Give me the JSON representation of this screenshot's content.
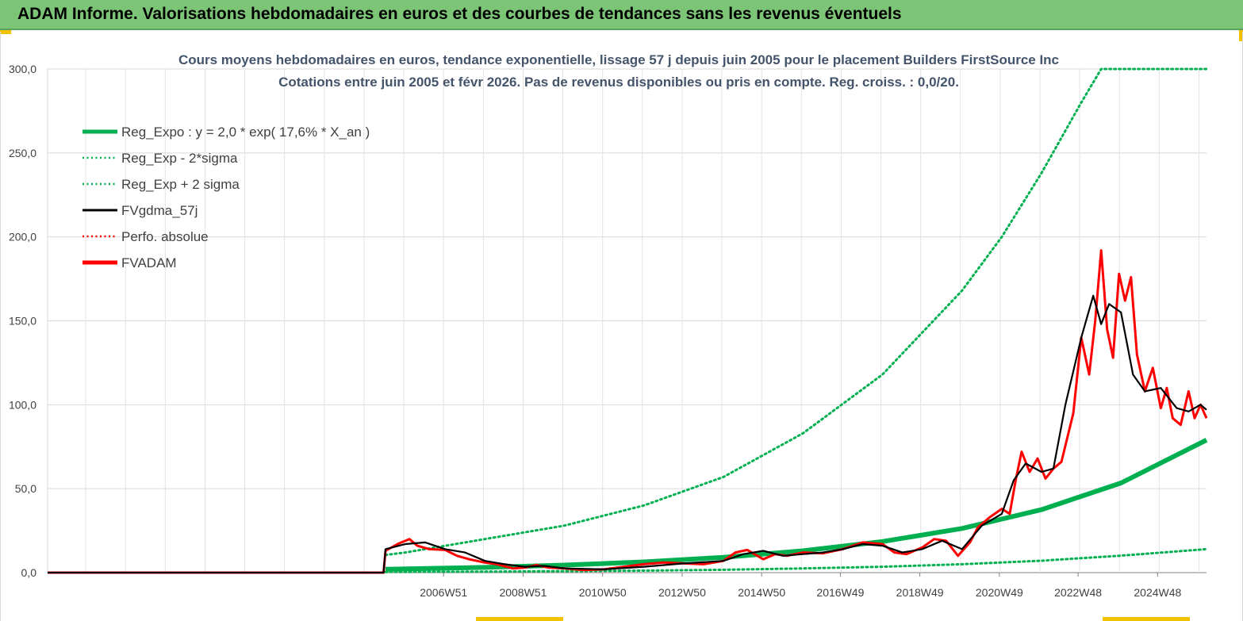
{
  "banner": {
    "title": "ADAM Informe. Valorisations hebdomadaires en euros et des courbes de tendances sans les revenus éventuels"
  },
  "colors": {
    "banner_bg": "#7cc576",
    "green": "#00b050",
    "red": "#ff0000",
    "black": "#000000",
    "grid": "#d9d9d9"
  },
  "chart_data": {
    "type": "line",
    "title": "Cours moyens hebdomadaires en euros, tendance exponentielle, lissage 57 j depuis juin 2005 pour le placement Builders FirstSource Inc",
    "subtitle": "Cotations entre juin 2005 et févr 2026. Pas de revenus disponibles ou pris en compte. Reg. croiss. : 0,0/20.",
    "xlabel": "",
    "ylabel": "",
    "ylim": [
      0,
      300
    ],
    "xlim": [
      1997.0,
      2026.15
    ],
    "y_ticks": [
      0,
      50,
      100,
      150,
      200,
      250,
      300
    ],
    "y_tick_labels": [
      "0,0",
      "50,0",
      "100,0",
      "150,0",
      "200,0",
      "250,0",
      "300,0"
    ],
    "x_ticks": [
      2006.96,
      2008.96,
      2010.96,
      2012.96,
      2014.96,
      2016.94,
      2018.94,
      2020.94,
      2022.92,
      2024.92
    ],
    "x_tick_labels": [
      "2006W51",
      "2008W51",
      "2010W50",
      "2012W50",
      "2014W50",
      "2016W49",
      "2018W49",
      "2020W49",
      "2022W48",
      "2024W48"
    ],
    "legend": [
      {
        "label": "Reg_Expo : y = 2,0 * exp( 17,6% *  X_an )",
        "style": "thick-solid",
        "color": "#00b050"
      },
      {
        "label": "Reg_Exp - 2*sigma",
        "style": "dotted",
        "color": "#00b050"
      },
      {
        "label": "Reg_Exp + 2 sigma",
        "style": "dotted",
        "color": "#00b050"
      },
      {
        "label": "FVgdma_57j",
        "style": "solid",
        "color": "#000000"
      },
      {
        "label": "Perfo. absolue",
        "style": "dotted",
        "color": "#ff0000"
      },
      {
        "label": "FVADAM",
        "style": "thick-solid",
        "color": "#ff0000"
      }
    ],
    "series": [
      {
        "name": "Reg_Expo",
        "x": [
          2005.5,
          2008.0,
          2010.0,
          2012.0,
          2014.0,
          2016.0,
          2018.0,
          2020.0,
          2022.0,
          2024.0,
          2026.15
        ],
        "values": [
          2.0,
          3.1,
          4.5,
          6.4,
          9.1,
          13.0,
          18.5,
          26.3,
          37.5,
          53.4,
          79.0
        ]
      },
      {
        "name": "Reg_Exp - 2*sigma",
        "x": [
          2005.5,
          2008.0,
          2010.0,
          2012.0,
          2014.0,
          2016.0,
          2018.0,
          2020.0,
          2022.0,
          2024.0,
          2026.15
        ],
        "values": [
          0.4,
          0.6,
          0.9,
          1.2,
          1.7,
          2.5,
          3.5,
          5.0,
          7.1,
          10.1,
          14.0
        ]
      },
      {
        "name": "Reg_Exp + 2 sigma",
        "x": [
          2005.5,
          2006.0,
          2008.0,
          2010.0,
          2012.0,
          2014.0,
          2016.0,
          2018.0,
          2020.0,
          2021.0,
          2022.0,
          2023.0,
          2023.5,
          2024.0,
          2026.15
        ],
        "values": [
          10.5,
          12.0,
          20.0,
          28.0,
          40.0,
          57.0,
          83.0,
          118.0,
          168.0,
          200.0,
          238.0,
          280.0,
          300.0,
          300.0,
          300.0
        ]
      },
      {
        "name": "FVgdma_57j",
        "x": [
          1997.0,
          2005.45,
          2005.5,
          2006.0,
          2006.5,
          2007.0,
          2007.5,
          2008.0,
          2008.5,
          2009.0,
          2009.5,
          2010.0,
          2011.0,
          2012.0,
          2013.0,
          2014.0,
          2014.5,
          2015.0,
          2015.5,
          2016.0,
          2016.5,
          2017.0,
          2017.5,
          2018.0,
          2018.5,
          2019.0,
          2019.5,
          2020.0,
          2020.5,
          2021.0,
          2021.3,
          2021.6,
          2022.0,
          2022.3,
          2022.6,
          2023.0,
          2023.3,
          2023.5,
          2023.7,
          2024.0,
          2024.3,
          2024.6,
          2025.0,
          2025.4,
          2025.7,
          2026.0,
          2026.15
        ],
        "values": [
          0,
          0,
          14.0,
          17.0,
          18.0,
          14.0,
          12.0,
          7.0,
          5.0,
          3.5,
          4.0,
          2.5,
          2.0,
          3.5,
          5.5,
          7.0,
          11.0,
          13.0,
          10.0,
          11.0,
          12.0,
          14.0,
          17.0,
          16.0,
          12.0,
          14.0,
          19.0,
          14.0,
          28.0,
          35.0,
          55.0,
          65.0,
          60.0,
          62.0,
          100.0,
          140.0,
          165.0,
          148.0,
          160.0,
          155.0,
          118.0,
          108.0,
          110.0,
          98.0,
          96.0,
          100.0,
          97.0
        ]
      },
      {
        "name": "Perfo. absolue",
        "x": [
          1997.0,
          2005.45
        ],
        "values": [
          0,
          0
        ]
      },
      {
        "name": "FVADAM",
        "x": [
          1997.0,
          2005.45,
          2005.5,
          2005.8,
          2006.1,
          2006.3,
          2006.6,
          2007.0,
          2007.3,
          2007.6,
          2008.0,
          2008.3,
          2008.7,
          2009.0,
          2009.3,
          2009.6,
          2010.0,
          2010.5,
          2011.0,
          2011.5,
          2012.0,
          2012.5,
          2013.0,
          2013.5,
          2014.0,
          2014.3,
          2014.6,
          2015.0,
          2015.3,
          2015.6,
          2016.0,
          2016.5,
          2017.0,
          2017.5,
          2018.0,
          2018.3,
          2018.6,
          2019.0,
          2019.3,
          2019.6,
          2019.9,
          2020.2,
          2020.4,
          2020.7,
          2021.0,
          2021.2,
          2021.35,
          2021.5,
          2021.7,
          2021.9,
          2022.1,
          2022.3,
          2022.5,
          2022.8,
          2023.0,
          2023.2,
          2023.35,
          2023.5,
          2023.65,
          2023.8,
          2023.95,
          2024.1,
          2024.25,
          2024.4,
          2024.6,
          2024.8,
          2025.0,
          2025.15,
          2025.3,
          2025.5,
          2025.7,
          2025.85,
          2026.0,
          2026.15
        ],
        "values": [
          0,
          0,
          13.0,
          17.0,
          20.0,
          16.0,
          14.0,
          13.5,
          10.0,
          8.0,
          6.0,
          5.0,
          2.5,
          3.0,
          4.5,
          3.0,
          2.5,
          1.5,
          2.0,
          3.5,
          5.0,
          6.0,
          5.5,
          5.0,
          7.0,
          12.0,
          13.5,
          8.0,
          11.0,
          10.0,
          12.0,
          11.5,
          14.0,
          18.0,
          17.0,
          12.0,
          11.0,
          15.0,
          20.0,
          19.0,
          10.0,
          18.0,
          27.0,
          33.0,
          38.0,
          35.0,
          55.0,
          72.0,
          60.0,
          68.0,
          56.0,
          62.0,
          66.0,
          95.0,
          140.0,
          118.0,
          150.0,
          192.0,
          145.0,
          128.0,
          178.0,
          162.0,
          176.0,
          130.0,
          108.0,
          122.0,
          98.0,
          110.0,
          92.0,
          88.0,
          108.0,
          92.0,
          100.0,
          92.0
        ]
      }
    ]
  }
}
